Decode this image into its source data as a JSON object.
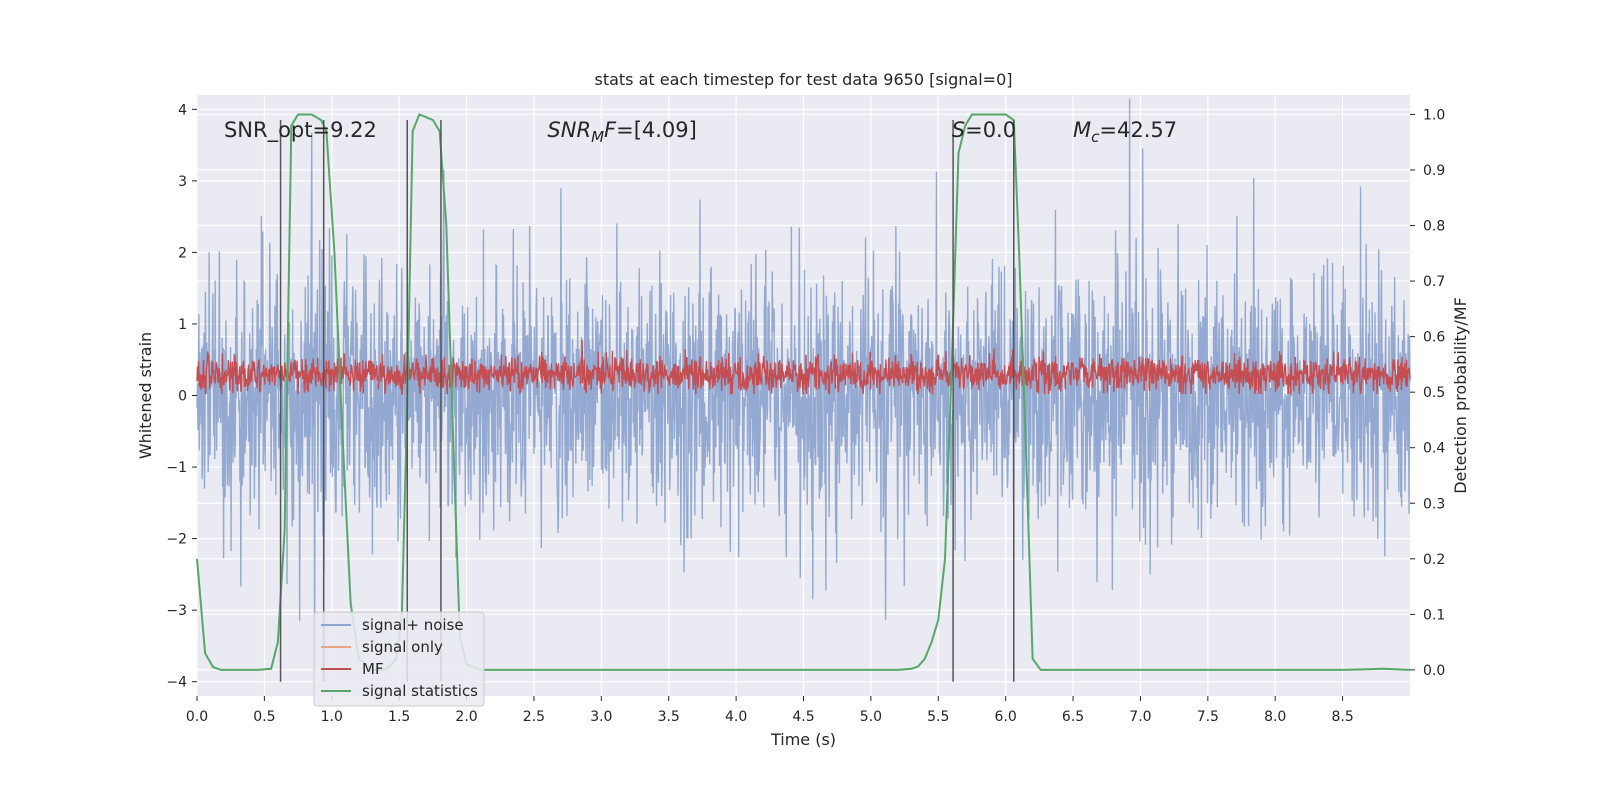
{
  "chart_data": {
    "type": "line",
    "title": "stats at each timestep for test data 9650 [signal=0]",
    "xlabel": "Time (s)",
    "ylabel": "Whitened strain",
    "y2label": "Detection probability/MF",
    "xlim": [
      0.0,
      9.0
    ],
    "ylim": [
      -4.2,
      4.2
    ],
    "y2lim": [
      -0.047,
      1.035
    ],
    "xticks": [
      0.0,
      0.5,
      1.0,
      1.5,
      2.0,
      2.5,
      3.0,
      3.5,
      4.0,
      4.5,
      5.0,
      5.5,
      6.0,
      6.5,
      7.0,
      7.5,
      8.0,
      8.5
    ],
    "yticks": [
      -4,
      -3,
      -2,
      -1,
      0,
      1,
      2,
      3,
      4
    ],
    "y2ticks": [
      0.0,
      0.1,
      0.2,
      0.3,
      0.4,
      0.5,
      0.6,
      0.7,
      0.8,
      0.9,
      1.0
    ],
    "grid": true,
    "legend_position": "lower-left",
    "annotations": [
      {
        "text": "SNR_opt=9.22",
        "x": 0.2,
        "y": 3.7
      },
      {
        "text": "SNR_MF=[4.09]",
        "x": 2.6,
        "y": 3.7
      },
      {
        "text": "S=0.0",
        "x": 5.6,
        "y": 3.7
      },
      {
        "text": "M_c=42.57",
        "x": 6.5,
        "y": 3.7
      }
    ],
    "vertical_markers_x": [
      0.62,
      0.94,
      1.56,
      1.81,
      5.61,
      6.06
    ],
    "series": [
      {
        "name": "signal+ noise",
        "color": "#8fa5cf",
        "axis": "left",
        "description": "whitened noisy strain, dense trace",
        "noise_std": 0.85,
        "x_range": [
          0.0,
          9.0
        ]
      },
      {
        "name": "signal only",
        "color": "#e8a585",
        "axis": "left",
        "description": "not visible (signal=0)",
        "x": [],
        "y": []
      },
      {
        "name": "MF",
        "color": "#c44e52",
        "axis": "left",
        "description": "matched filter output, dense trace",
        "mean": 0.3,
        "noise_std": 0.13,
        "x_range": [
          0.0,
          9.0
        ]
      },
      {
        "name": "signal statistics",
        "color": "#55a868",
        "axis": "right",
        "x": [
          0.0,
          0.06,
          0.12,
          0.18,
          0.25,
          0.35,
          0.45,
          0.55,
          0.6,
          0.65,
          0.7,
          0.75,
          0.85,
          0.92,
          0.96,
          1.02,
          1.08,
          1.14,
          1.2,
          1.3,
          1.4,
          1.48,
          1.52,
          1.56,
          1.6,
          1.65,
          1.75,
          1.8,
          1.85,
          1.9,
          1.95,
          2.0,
          2.1,
          2.5,
          3.0,
          3.5,
          4.0,
          4.5,
          5.0,
          5.2,
          5.3,
          5.35,
          5.4,
          5.45,
          5.5,
          5.55,
          5.6,
          5.65,
          5.7,
          5.75,
          5.8,
          5.9,
          6.0,
          6.06,
          6.1,
          6.15,
          6.2,
          6.26,
          6.35,
          6.5,
          7.0,
          7.5,
          8.0,
          8.5,
          8.65,
          8.8,
          9.0
        ],
        "y": [
          0.2,
          0.03,
          0.005,
          0.0,
          0.0,
          0.0,
          0.0,
          0.002,
          0.05,
          0.25,
          0.98,
          1.0,
          1.0,
          0.99,
          0.97,
          0.75,
          0.42,
          0.12,
          0.02,
          0.0,
          0.0,
          0.02,
          0.1,
          0.48,
          0.97,
          1.0,
          0.99,
          0.97,
          0.8,
          0.42,
          0.06,
          0.01,
          0.0,
          0.0,
          0.0,
          0.0,
          0.0,
          0.0,
          0.0,
          0.0,
          0.002,
          0.006,
          0.02,
          0.05,
          0.09,
          0.2,
          0.55,
          0.93,
          0.98,
          1.0,
          1.0,
          1.0,
          1.0,
          0.99,
          0.75,
          0.4,
          0.02,
          0.0,
          0.0,
          0.0,
          0.0,
          0.0,
          0.0,
          0.0,
          0.001,
          0.002,
          0.0
        ]
      }
    ]
  }
}
